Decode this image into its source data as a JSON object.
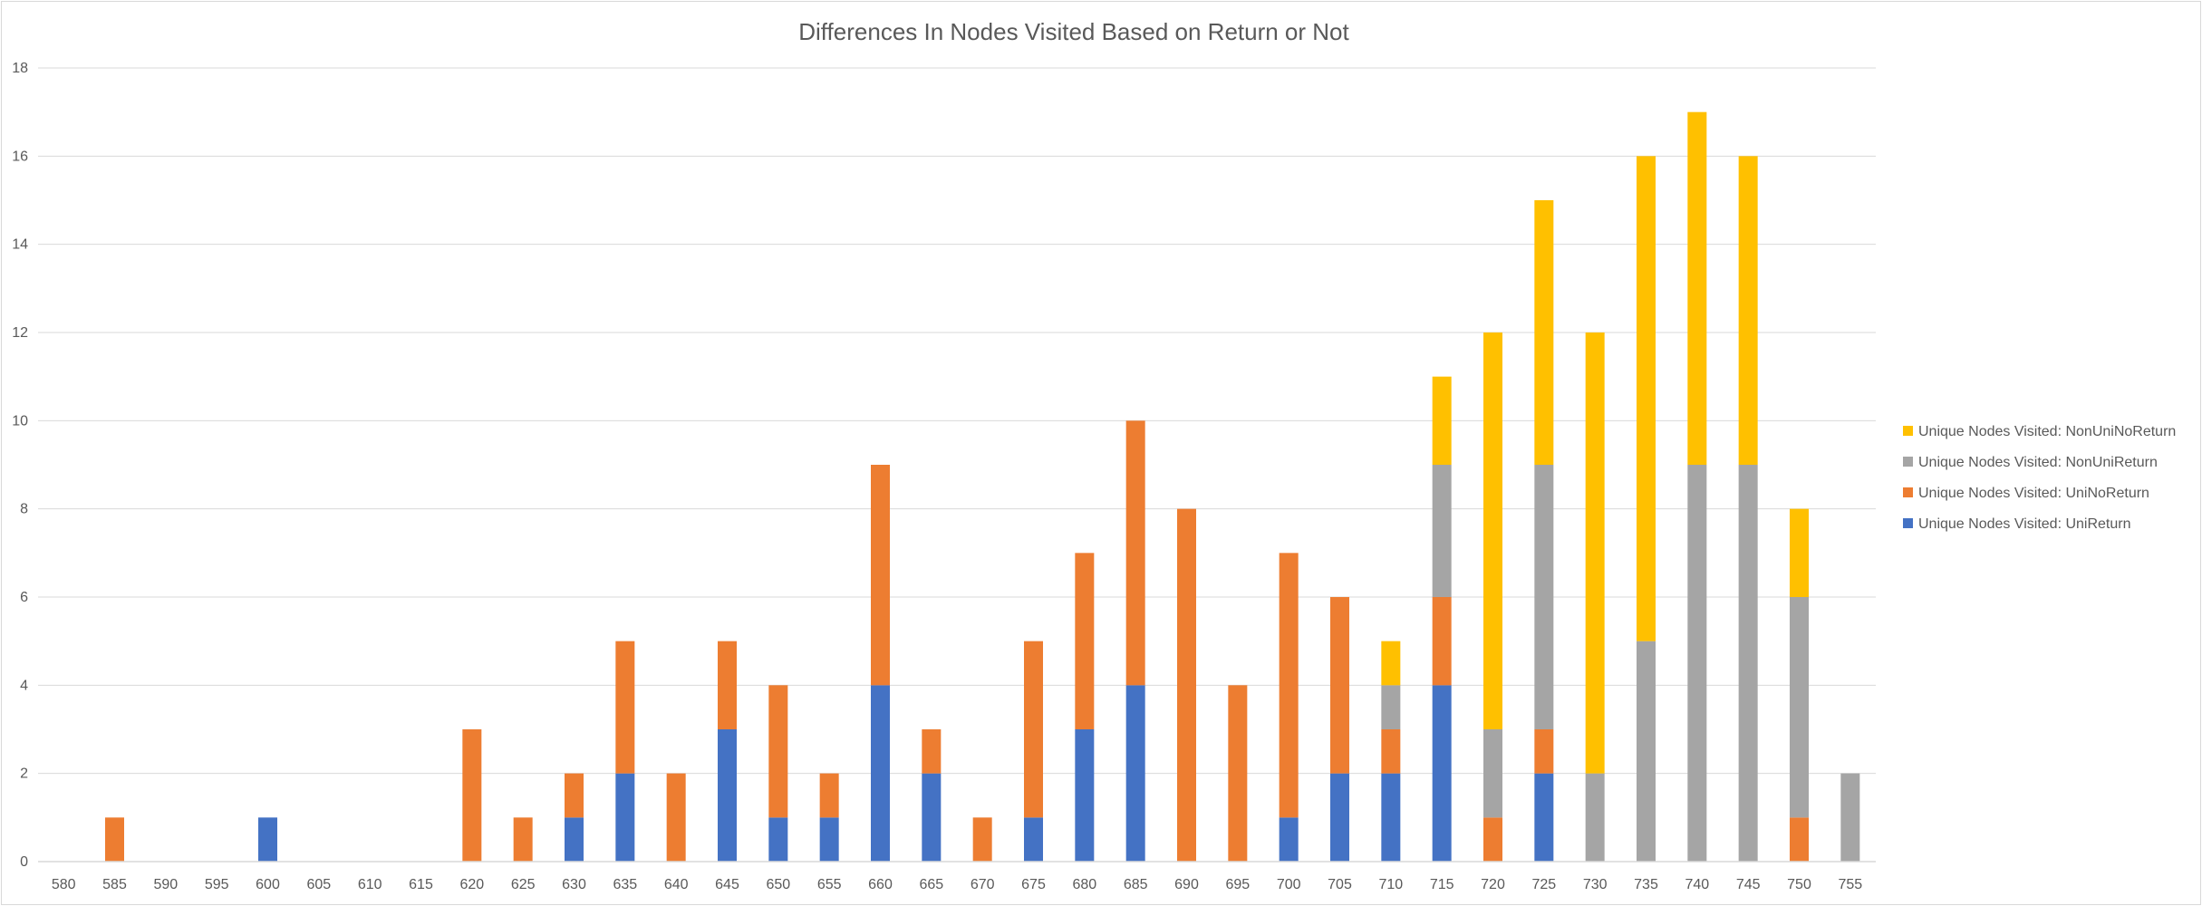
{
  "chart_data": {
    "type": "bar",
    "stacked": true,
    "title": "Differences In Nodes Visited Based on Return or Not",
    "xlabel": "",
    "ylabel": "",
    "ylim": [
      0,
      18
    ],
    "y_ticks": [
      "0",
      "2",
      "4",
      "6",
      "8",
      "10",
      "12",
      "14",
      "16",
      "18"
    ],
    "grid": true,
    "legend_position": "right",
    "categories": [
      "580",
      "585",
      "590",
      "595",
      "600",
      "605",
      "610",
      "615",
      "620",
      "625",
      "630",
      "635",
      "640",
      "645",
      "650",
      "655",
      "660",
      "665",
      "670",
      "675",
      "680",
      "685",
      "690",
      "695",
      "700",
      "705",
      "710",
      "715",
      "720",
      "725",
      "730",
      "735",
      "740",
      "745",
      "750",
      "755"
    ],
    "series": [
      {
        "name": "Unique Nodes Visited: UniReturn",
        "color": "#4472c4",
        "values": [
          0,
          0,
          0,
          0,
          1,
          0,
          0,
          0,
          0,
          0,
          1,
          2,
          0,
          3,
          1,
          1,
          4,
          2,
          0,
          1,
          3,
          4,
          0,
          0,
          1,
          2,
          2,
          4,
          0,
          2,
          0,
          0,
          0,
          0,
          0,
          0
        ]
      },
      {
        "name": "Unique Nodes Visited: UniNoReturn",
        "color": "#ed7d31",
        "values": [
          0,
          1,
          0,
          0,
          0,
          0,
          0,
          0,
          3,
          1,
          1,
          3,
          2,
          2,
          3,
          1,
          5,
          1,
          1,
          4,
          4,
          6,
          8,
          4,
          6,
          4,
          1,
          2,
          1,
          1,
          0,
          0,
          0,
          0,
          1,
          0
        ]
      },
      {
        "name": "Unique Nodes Visited: NonUniReturn",
        "color": "#a5a5a5",
        "values": [
          0,
          0,
          0,
          0,
          0,
          0,
          0,
          0,
          0,
          0,
          0,
          0,
          0,
          0,
          0,
          0,
          0,
          0,
          0,
          0,
          0,
          0,
          0,
          0,
          0,
          0,
          1,
          3,
          2,
          6,
          2,
          5,
          9,
          9,
          5,
          2
        ]
      },
      {
        "name": "Unique Nodes Visited: NonUniNoReturn",
        "color": "#ffc000",
        "values": [
          0,
          0,
          0,
          0,
          0,
          0,
          0,
          0,
          0,
          0,
          0,
          0,
          0,
          0,
          0,
          0,
          0,
          0,
          0,
          0,
          0,
          0,
          0,
          0,
          0,
          0,
          1,
          2,
          9,
          6,
          10,
          11,
          8,
          7,
          2,
          0
        ]
      }
    ]
  }
}
